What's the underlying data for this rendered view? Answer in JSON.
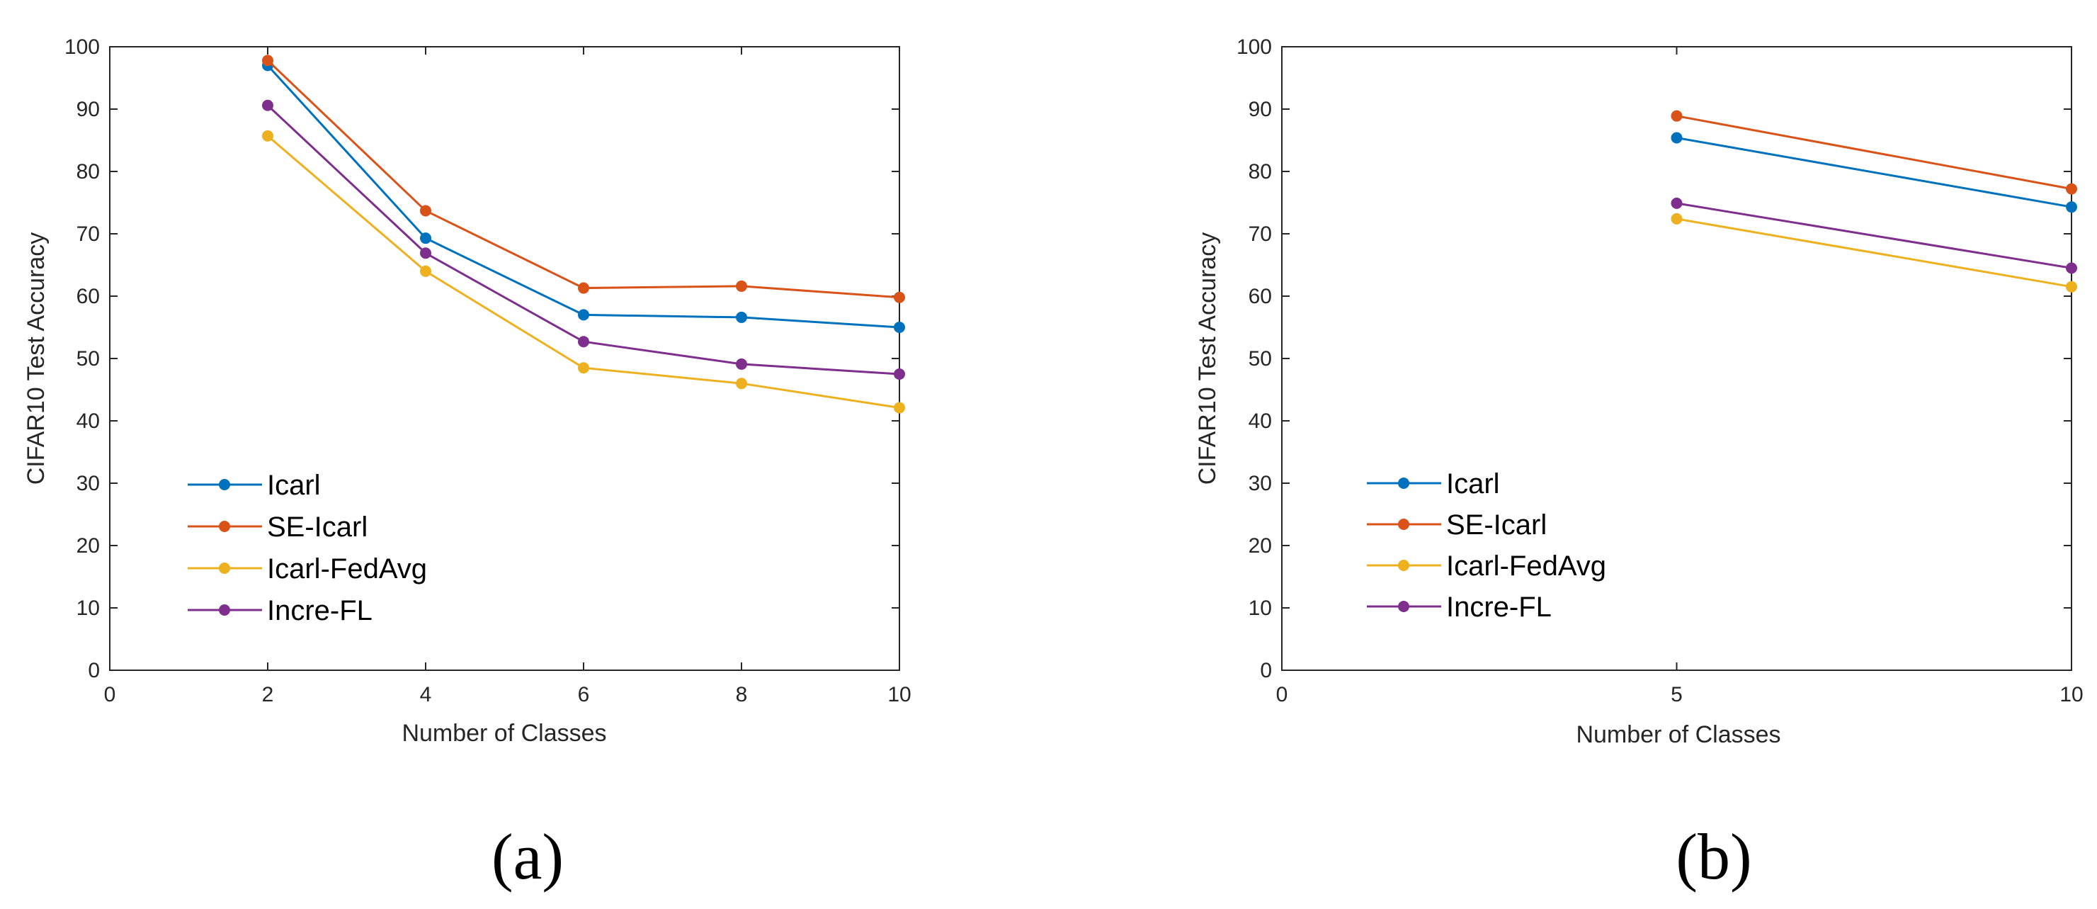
{
  "chart_data": [
    {
      "type": "line",
      "panel": "a",
      "caption": "(a)",
      "xlabel": "Number of Classes",
      "ylabel": "CIFAR10 Test Accuracy",
      "xlim": [
        0,
        10
      ],
      "ylim": [
        0,
        100
      ],
      "xticks": [
        "0",
        "2",
        "4",
        "6",
        "8",
        "10"
      ],
      "yticks": [
        "0",
        "10",
        "20",
        "30",
        "40",
        "50",
        "60",
        "70",
        "80",
        "90",
        "100"
      ],
      "x": [
        2,
        4,
        6,
        8,
        10
      ],
      "legend_position": "lower-left",
      "series": [
        {
          "name": "Icarl",
          "color": "#0072BD",
          "values": [
            97,
            69.3,
            57,
            56.6,
            55
          ]
        },
        {
          "name": "SE-Icarl",
          "color": "#D95319",
          "values": [
            97.8,
            73.7,
            61.3,
            61.6,
            59.8
          ]
        },
        {
          "name": "Icarl-FedAvg",
          "color": "#EDB120",
          "values": [
            85.7,
            64,
            48.5,
            46,
            42.1
          ]
        },
        {
          "name": "Incre-FL",
          "color": "#7E2F8E",
          "values": [
            90.6,
            66.9,
            52.7,
            49.1,
            47.5
          ]
        }
      ]
    },
    {
      "type": "line",
      "panel": "b",
      "caption": "(b)",
      "xlabel": "Number of Classes",
      "ylabel": "CIFAR10 Test Accuracy",
      "xlim": [
        0,
        10
      ],
      "ylim": [
        0,
        100
      ],
      "xticks": [
        "0",
        "5",
        "10"
      ],
      "yticks": [
        "0",
        "10",
        "20",
        "30",
        "40",
        "50",
        "60",
        "70",
        "80",
        "90",
        "100"
      ],
      "x": [
        5,
        10
      ],
      "legend_position": "lower-left",
      "series": [
        {
          "name": "Icarl",
          "color": "#0072BD",
          "values": [
            85.4,
            74.3
          ]
        },
        {
          "name": "SE-Icarl",
          "color": "#D95319",
          "values": [
            88.9,
            77.2
          ]
        },
        {
          "name": "Icarl-FedAvg",
          "color": "#EDB120",
          "values": [
            72.4,
            61.5
          ]
        },
        {
          "name": "Incre-FL",
          "color": "#7E2F8E",
          "values": [
            74.9,
            64.5
          ]
        }
      ]
    }
  ]
}
